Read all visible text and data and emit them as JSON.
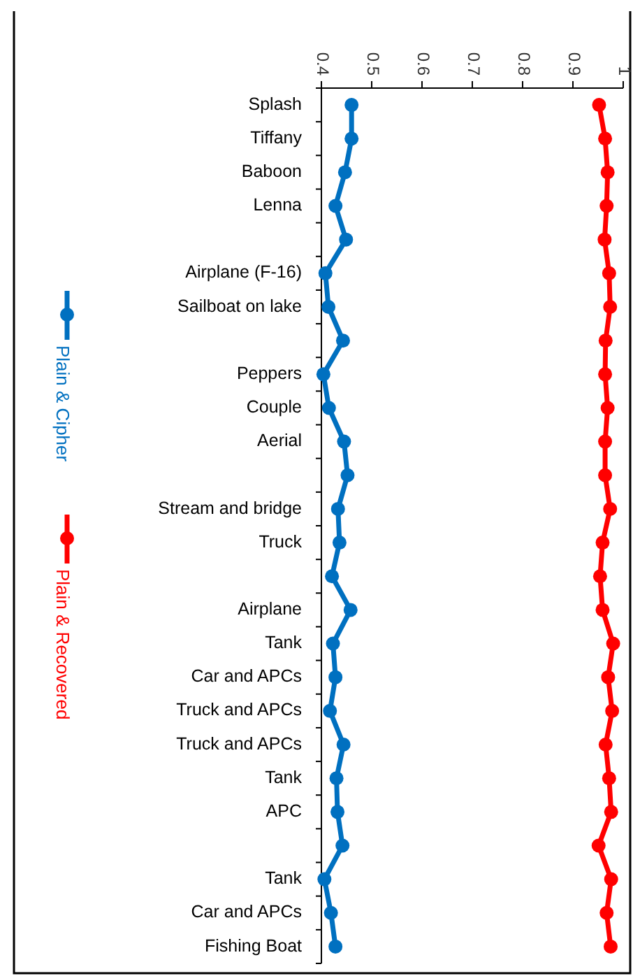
{
  "chart_data": {
    "type": "line",
    "orientation": "horizontal",
    "categories": [
      "Splash",
      "Tiffany",
      "Baboon",
      "Lenna",
      null,
      "Airplane (F-16)",
      "Sailboat on lake",
      null,
      "Peppers",
      "Couple",
      "Aerial",
      null,
      "Stream and bridge",
      "Truck",
      null,
      "Airplane",
      "Tank",
      "Car and APCs",
      "Truck and APCs",
      "Truck and APCs",
      "Tank",
      "APC",
      null,
      "Tank",
      "Car and APCs",
      "Fishing Boat"
    ],
    "series": [
      {
        "name": "Plain & Cipher",
        "color": "#0070c0",
        "values": [
          0.46,
          0.46,
          0.447,
          0.428,
          0.449,
          0.408,
          0.414,
          0.443,
          0.404,
          0.415,
          0.445,
          0.452,
          0.433,
          0.436,
          0.421,
          0.458,
          0.423,
          0.428,
          0.417,
          0.444,
          0.43,
          0.432,
          0.442,
          0.406,
          0.419,
          0.428
        ]
      },
      {
        "name": "Plain & Recovered",
        "color": "#ff0000",
        "values": [
          0.952,
          0.964,
          0.969,
          0.967,
          0.963,
          0.972,
          0.974,
          0.965,
          0.964,
          0.969,
          0.964,
          0.964,
          0.974,
          0.959,
          0.954,
          0.959,
          0.98,
          0.97,
          0.978,
          0.965,
          0.972,
          0.976,
          0.951,
          0.976,
          0.967,
          0.975
        ]
      }
    ],
    "xlim": [
      0.4,
      1
    ],
    "xticks": [
      0.4,
      0.5,
      0.6,
      0.7,
      0.8,
      0.9,
      1
    ],
    "grid": false,
    "legend": "left",
    "marker": "circle",
    "line_style": "solid"
  }
}
